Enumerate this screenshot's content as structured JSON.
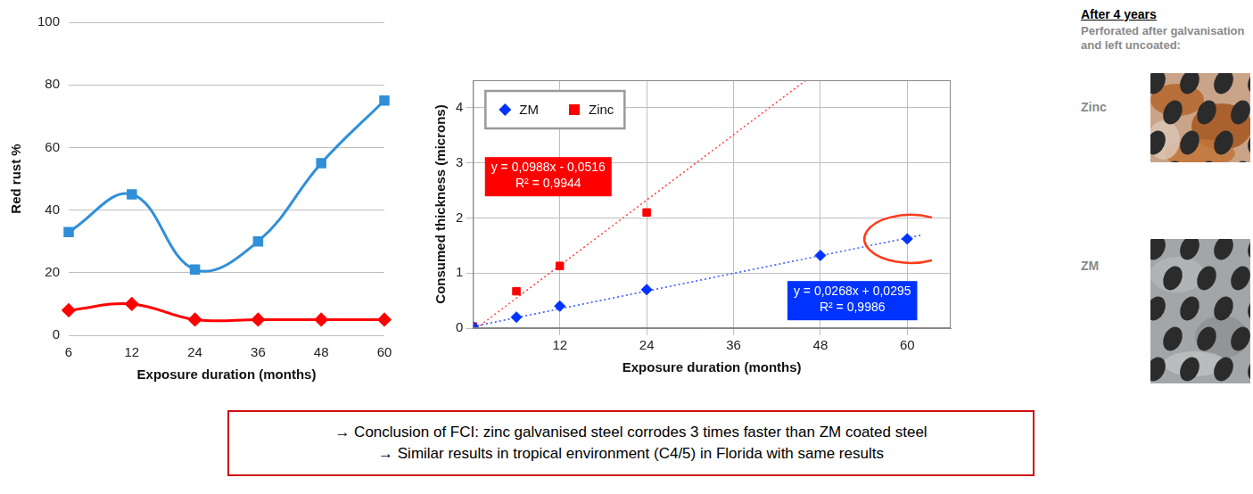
{
  "chart_data": [
    {
      "type": "line",
      "xlabel": "Exposure duration (months)",
      "ylabel": "Red rust %",
      "categories": [
        6,
        12,
        24,
        36,
        48,
        60
      ],
      "series": [
        {
          "color": "#2f8fd8",
          "marker": "square",
          "line_style": "smooth",
          "values": [
            33,
            45,
            21,
            30,
            55,
            75
          ]
        },
        {
          "color": "#ff0000",
          "marker": "diamond",
          "line_style": "smooth",
          "values": [
            8,
            10,
            5,
            5,
            5,
            5
          ]
        }
      ],
      "ylim": [
        0,
        100
      ],
      "yticks": [
        0,
        20,
        40,
        60,
        80,
        100
      ],
      "grid": true
    },
    {
      "type": "scatter",
      "xlabel": "Exposure duration (months)",
      "ylabel": "Consumed thickness (microns)",
      "series": [
        {
          "name": "ZM",
          "color": "#0033ff",
          "marker": "diamond",
          "x": [
            0,
            6,
            12,
            24,
            48,
            60
          ],
          "values": [
            0.03,
            0.2,
            0.4,
            0.7,
            1.32,
            1.62
          ]
        },
        {
          "name": "Zinc",
          "color": "#ff0000",
          "marker": "square",
          "x": [
            0,
            6,
            12,
            24
          ],
          "values": [
            0.03,
            0.67,
            1.13,
            2.1
          ]
        },
        {
          "type": "line",
          "color": "#3355ff",
          "line_style": "dotted",
          "x": [
            0,
            62
          ],
          "values": [
            0.03,
            1.69
          ]
        },
        {
          "type": "line",
          "color": "#ff4040",
          "line_style": "dotted",
          "x": [
            0.5,
            46
          ],
          "values": [
            0,
            4.5
          ]
        }
      ],
      "annotations": [
        {
          "text": [
            "y = 0,0988x - 0,0516",
            "R² = 0,9944"
          ],
          "color": "#ff0000"
        },
        {
          "text": [
            "y = 0,0268x + 0,0295",
            "R² = 0,9986"
          ],
          "color": "#0033ff"
        }
      ],
      "xlim": [
        0,
        66
      ],
      "xticks": [
        12,
        24,
        36,
        48,
        60
      ],
      "ylim": [
        0,
        4.5
      ],
      "yticks": [
        0,
        1,
        2,
        3,
        4
      ],
      "grid": true,
      "legend": "upper left"
    }
  ],
  "photos_panel": {
    "heading": "After 4 years",
    "subheading": "Perforated after galvanisation and left uncoated:",
    "photos": [
      {
        "label": "Zinc"
      },
      {
        "label": "ZM"
      }
    ]
  },
  "conclusion": [
    "→ Conclusion of FCI: zinc galvanised steel corrodes 3 times faster than ZM coated steel",
    "→ Similar results in tropical environment (C4/5) in Florida with same results"
  ]
}
